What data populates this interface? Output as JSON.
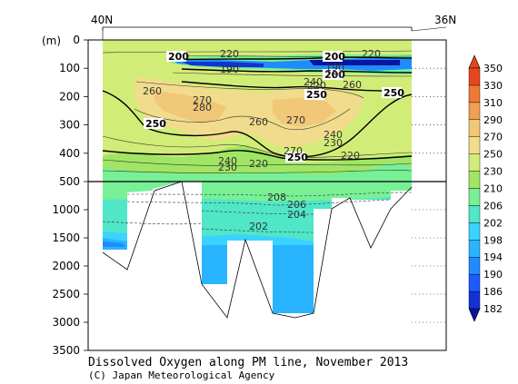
{
  "chart_data": {
    "type": "heatmap",
    "title": "Dissolved Oxygen along PM line, November 2013",
    "credit": "(C) Japan Meteorological Agency",
    "x_axis": {
      "left_label": "40N",
      "right_label": "36N"
    },
    "y_axis": {
      "unit": "(m)",
      "ticks": [
        0,
        100,
        200,
        300,
        400,
        500,
        1000,
        1500,
        2000,
        2500,
        3000,
        3500
      ],
      "tick_labels": [
        "0",
        "100",
        "200",
        "300",
        "400",
        "500",
        "1000",
        "1500",
        "2000",
        "2500",
        "3000",
        "3500"
      ]
    },
    "colorbar": {
      "levels": [
        182,
        186,
        190,
        194,
        198,
        202,
        206,
        210,
        230,
        250,
        270,
        290,
        310,
        330,
        350
      ],
      "labels": [
        "182",
        "186",
        "190",
        "194",
        "198",
        "202",
        "206",
        "210",
        "230",
        "250",
        "270",
        "290",
        "310",
        "330",
        "350"
      ],
      "colors": [
        "#0a14a0",
        "#1432d2",
        "#1e5aff",
        "#1e8cff",
        "#28b4ff",
        "#3cd2ff",
        "#50e6c8",
        "#78f096",
        "#a0e664",
        "#d2ec78",
        "#f0dc8c",
        "#f0c878",
        "#f0a050",
        "#f07832",
        "#e6461e"
      ]
    },
    "contour_labels": {
      "major": [
        "200",
        "200",
        "200",
        "250",
        "250",
        "250",
        "250"
      ],
      "minor": [
        "220",
        "220",
        "190",
        "190",
        "260",
        "260",
        "270",
        "280",
        "270",
        "260",
        "270",
        "240",
        "220",
        "240",
        "230",
        "230",
        "220",
        "240",
        "230",
        "220",
        "208",
        "206",
        "204",
        "202"
      ]
    },
    "station_bottom_depths": [
      1650,
      2050,
      620,
      2300,
      2900,
      1480,
      2950,
      2870,
      950,
      750,
      1700,
      920,
      550
    ]
  },
  "colors": {
    "land": "#ffffff",
    "axis": "#000000",
    "grid_dots": "#000000",
    "bottom_line": "#000000"
  }
}
